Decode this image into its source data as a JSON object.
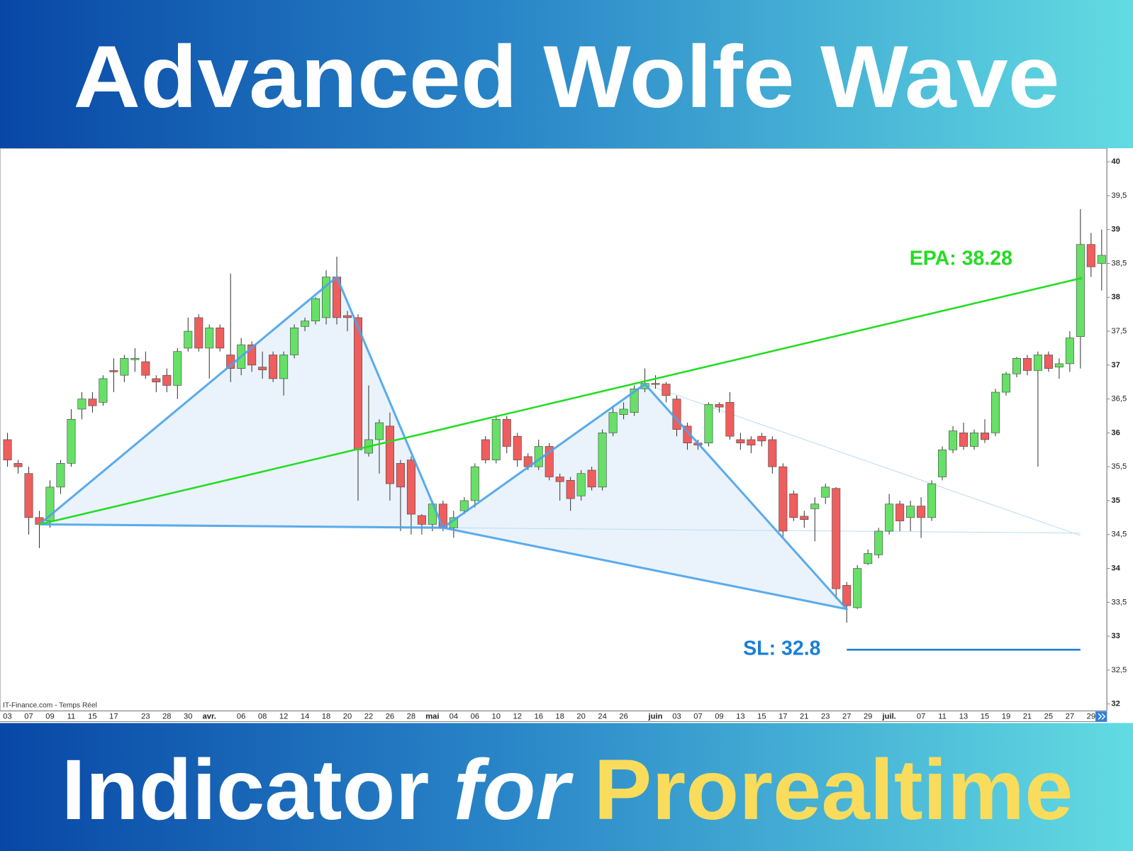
{
  "header": {
    "title": "Advanced Wolfe Wave"
  },
  "footer": {
    "word1": "Indicator",
    "word2": "for",
    "word3": "Prorealtime"
  },
  "chart_data": {
    "type": "candlestick",
    "source": "IT-Finance.com - Temps Réel",
    "categories": [
      "03",
      null,
      "07",
      null,
      "09",
      null,
      "11",
      null,
      "15",
      null,
      "17",
      null,
      null,
      "23",
      null,
      "28",
      null,
      "30",
      null,
      "avr.",
      null,
      null,
      "06",
      null,
      "08",
      null,
      "12",
      null,
      "14",
      null,
      "18",
      null,
      "20",
      null,
      "22",
      null,
      "26",
      null,
      "28",
      null,
      "mai",
      null,
      "04",
      null,
      "06",
      null,
      "10",
      null,
      "12",
      null,
      "16",
      null,
      "18",
      null,
      "20",
      null,
      "24",
      null,
      "26",
      null,
      null,
      "juin",
      null,
      "03",
      null,
      "07",
      null,
      "09",
      null,
      "13",
      null,
      "15",
      null,
      "17",
      null,
      "21",
      null,
      "23",
      null,
      "27",
      null,
      "29",
      null,
      "juil.",
      null,
      null,
      "07",
      null,
      "11",
      null,
      "13",
      null,
      "15",
      null,
      "19",
      null,
      "21",
      null,
      "25",
      null,
      "27",
      null,
      "29",
      null
    ],
    "open": [
      35.9,
      35.55,
      35.4,
      34.75,
      34.7,
      35.2,
      35.55,
      36.35,
      36.5,
      36.45,
      36.92,
      36.85,
      37.08,
      37.05,
      36.8,
      36.85,
      36.7,
      37.25,
      37.7,
      37.25,
      37.55,
      37.15,
      36.95,
      37.3,
      36.97,
      37.15,
      36.8,
      37.15,
      37.57,
      37.65,
      37.7,
      38.3,
      37.73,
      37.7,
      35.7,
      35.9,
      36.1,
      35.55,
      35.6,
      34.78,
      34.65,
      34.95,
      34.6,
      34.85,
      35.0,
      35.9,
      35.6,
      36.2,
      35.95,
      35.65,
      35.5,
      35.8,
      35.35,
      35.3,
      35.07,
      35.45,
      35.2,
      36.0,
      36.27,
      36.3,
      36.65,
      36.73,
      36.72,
      36.5,
      36.1,
      35.85,
      35.85,
      36.42,
      36.45,
      35.9,
      35.9,
      35.95,
      35.9,
      35.5,
      35.1,
      34.77,
      34.88,
      35.05,
      35.18,
      33.75,
      33.42,
      34.07,
      34.2,
      34.55,
      34.95,
      34.75,
      34.92,
      34.75,
      35.35,
      35.75,
      36.0,
      35.8,
      36.0,
      36.0,
      36.6,
      36.87,
      37.1,
      36.92,
      37.15,
      36.97,
      37.02,
      37.42,
      38.78,
      38.5
    ],
    "high": [
      36.0,
      35.6,
      35.5,
      34.85,
      35.3,
      35.6,
      36.35,
      36.6,
      36.6,
      36.85,
      37.1,
      37.15,
      37.25,
      37.2,
      36.85,
      36.95,
      37.25,
      37.7,
      37.75,
      37.6,
      37.6,
      38.35,
      37.4,
      37.35,
      37.2,
      37.2,
      37.2,
      37.6,
      37.7,
      38.0,
      38.4,
      38.6,
      37.8,
      37.75,
      36.7,
      36.2,
      36.3,
      35.6,
      35.65,
      34.8,
      35.0,
      35.0,
      34.85,
      35.05,
      35.55,
      35.95,
      36.25,
      36.25,
      36.0,
      35.7,
      35.9,
      35.85,
      35.4,
      35.35,
      35.45,
      35.5,
      36.05,
      36.4,
      36.45,
      36.7,
      36.95,
      36.85,
      36.75,
      36.55,
      36.15,
      35.9,
      36.45,
      36.45,
      36.6,
      36.0,
      35.95,
      36.0,
      35.95,
      35.55,
      35.15,
      34.85,
      35.05,
      35.25,
      35.2,
      33.8,
      34.05,
      34.28,
      34.6,
      35.1,
      35.0,
      35.0,
      35.05,
      35.3,
      35.8,
      36.1,
      36.15,
      36.05,
      36.2,
      36.65,
      36.9,
      37.12,
      37.15,
      37.2,
      37.2,
      37.1,
      37.5,
      39.3,
      38.95,
      39.0
    ],
    "low": [
      35.5,
      35.4,
      34.5,
      34.3,
      34.6,
      35.1,
      35.5,
      36.2,
      36.3,
      36.4,
      36.6,
      36.75,
      36.9,
      36.8,
      36.6,
      36.6,
      36.5,
      37.2,
      37.2,
      36.8,
      37.2,
      36.75,
      36.85,
      36.9,
      36.8,
      36.75,
      36.55,
      37.1,
      37.5,
      37.6,
      37.6,
      37.6,
      37.5,
      35.0,
      35.65,
      35.4,
      35.0,
      34.55,
      34.5,
      34.5,
      34.55,
      34.55,
      34.45,
      34.8,
      34.9,
      35.55,
      35.55,
      35.7,
      35.5,
      35.45,
      35.45,
      35.3,
      35.0,
      34.85,
      35.0,
      35.15,
      35.15,
      35.95,
      36.2,
      36.25,
      36.6,
      36.65,
      36.45,
      35.95,
      35.75,
      35.75,
      35.8,
      36.3,
      35.9,
      35.75,
      35.7,
      35.8,
      35.4,
      34.45,
      34.7,
      34.6,
      34.4,
      34.95,
      33.55,
      33.2,
      33.4,
      34.05,
      34.15,
      34.5,
      34.55,
      34.55,
      34.45,
      34.7,
      35.3,
      35.7,
      35.75,
      35.75,
      35.85,
      35.95,
      36.55,
      36.82,
      36.85,
      35.5,
      36.9,
      36.8,
      36.9,
      36.95,
      38.3,
      38.1
    ],
    "close": [
      35.6,
      35.5,
      34.75,
      34.65,
      35.2,
      35.55,
      36.2,
      36.5,
      36.4,
      36.8,
      36.9,
      37.1,
      37.1,
      36.85,
      36.75,
      36.7,
      37.2,
      37.5,
      37.25,
      37.55,
      37.25,
      36.95,
      37.3,
      37.0,
      36.93,
      36.8,
      37.15,
      37.55,
      37.65,
      37.98,
      38.3,
      37.7,
      37.7,
      35.75,
      35.9,
      36.15,
      35.25,
      35.2,
      34.8,
      34.65,
      34.95,
      34.6,
      34.75,
      35.0,
      35.5,
      35.6,
      36.2,
      35.8,
      35.6,
      35.5,
      35.8,
      35.35,
      35.28,
      35.03,
      35.4,
      35.2,
      36.0,
      36.3,
      36.35,
      36.65,
      36.73,
      36.72,
      36.55,
      36.05,
      35.85,
      35.82,
      36.42,
      36.38,
      35.95,
      35.85,
      35.82,
      35.88,
      35.5,
      34.55,
      34.75,
      34.72,
      34.95,
      35.2,
      33.7,
      33.45,
      34.0,
      34.22,
      34.55,
      34.95,
      34.7,
      34.92,
      34.75,
      35.25,
      35.75,
      36.03,
      35.8,
      36.0,
      35.9,
      36.6,
      36.87,
      37.1,
      36.92,
      37.15,
      36.95,
      37.02,
      37.4,
      38.78,
      38.45,
      38.62
    ],
    "up_color": "#66e066",
    "down_color": "#ef5d5d",
    "wick_color": "#333333",
    "wave": {
      "x": [
        3,
        31,
        41,
        60,
        79
      ],
      "values": [
        34.65,
        38.3,
        34.6,
        36.72,
        33.4
      ],
      "color": "#4aa3ea",
      "fill": "#eaf3fb"
    },
    "target": {
      "label": "EPA: 38.28",
      "value": 38.28,
      "x": [
        3,
        101
      ],
      "values": [
        34.65,
        38.28
      ],
      "color": "#22dd22"
    },
    "stop": {
      "label": "SL: 32.8",
      "value": 32.8,
      "x": [
        79,
        101
      ],
      "color": "#1a7fd6"
    },
    "ylim": [
      31.9,
      40.2
    ],
    "yticks": [
      40,
      {
        "value": 39.5,
        "label": "39,5"
      },
      39,
      {
        "value": 38.5,
        "label": "38,5"
      },
      38,
      {
        "value": 37.5,
        "label": "37,5"
      },
      37,
      {
        "value": 36.5,
        "label": "36,5"
      },
      36,
      {
        "value": 35.5,
        "label": "35,5"
      },
      35,
      {
        "value": 34.5,
        "label": "34,5"
      },
      34,
      {
        "value": 33.5,
        "label": "33,5"
      },
      33,
      {
        "value": 32.5,
        "label": "32,5"
      },
      32
    ]
  }
}
